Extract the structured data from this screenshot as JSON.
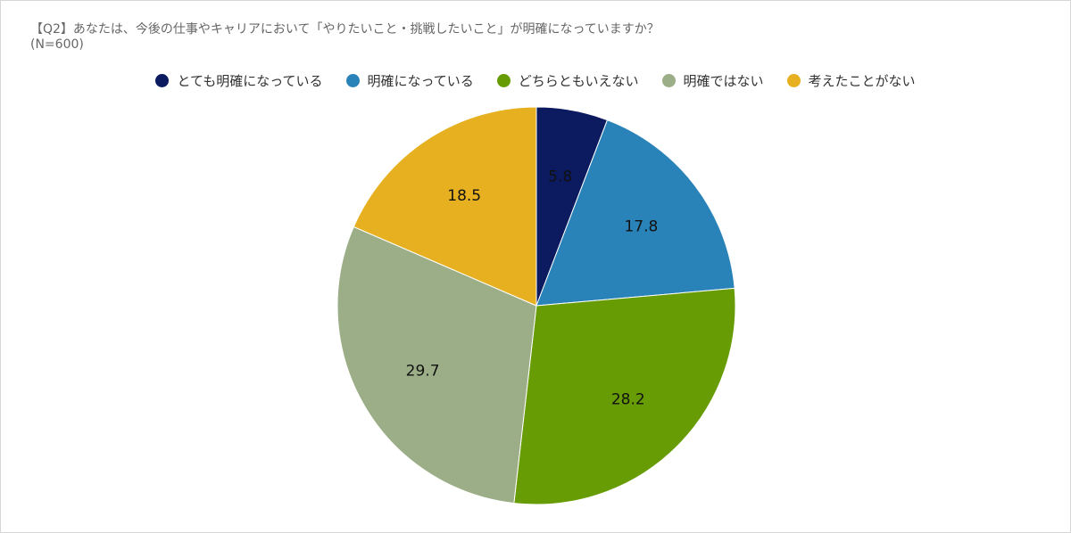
{
  "title": "【Q2】あなたは、今後の仕事やキャリアにおいて「やりたいこと・挑戦したいこと」が明確になっていますか？",
  "subtitle": "(N=600)",
  "chart_data": {
    "type": "pie",
    "title": "【Q2】あなたは、今後の仕事やキャリアにおいて「やりたいこと・挑戦したいこと」が明確になっていますか？",
    "subtitle": "(N=600)",
    "legend_position": "top",
    "categories": [
      "とても明確になっている",
      "明確になっている",
      "どちらともいえない",
      "明確ではない",
      "考えたことがない"
    ],
    "values": [
      5.8,
      17.8,
      28.2,
      29.7,
      18.5
    ],
    "value_labels": [
      "5.8",
      "17.8",
      "28.2",
      "29.7",
      "18.5"
    ],
    "colors": [
      "#0c1a60",
      "#2a83b8",
      "#679c05",
      "#9cae87",
      "#e6b021"
    ]
  }
}
